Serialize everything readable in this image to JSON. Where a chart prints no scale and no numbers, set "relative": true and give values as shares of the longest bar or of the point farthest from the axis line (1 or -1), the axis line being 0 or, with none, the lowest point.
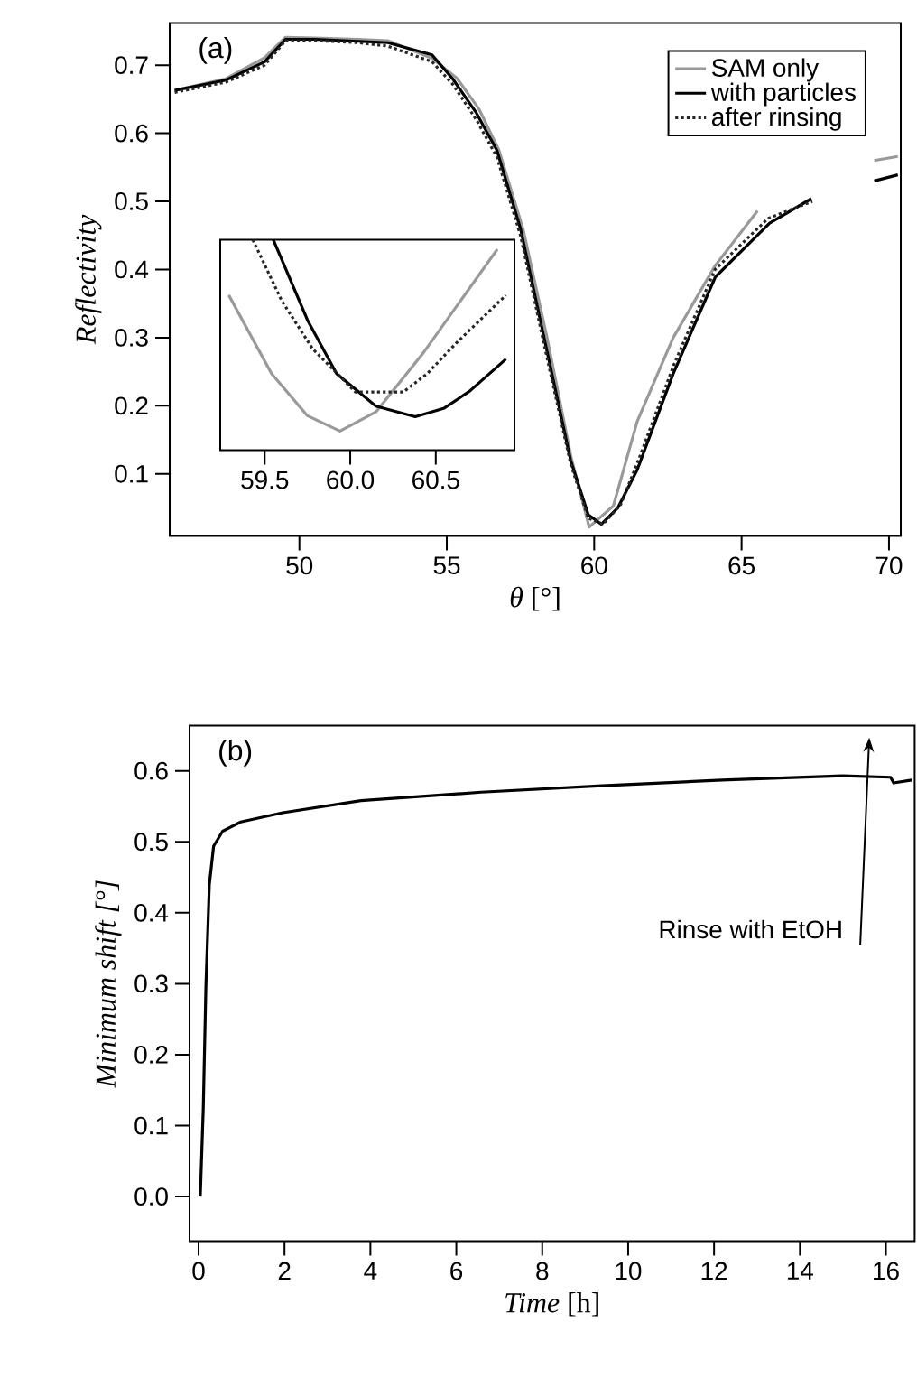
{
  "chart_data": [
    {
      "type": "line",
      "xlabel": "*θ* [°]",
      "ylabel": "Reflectivity",
      "annotations": [
        "(a)"
      ],
      "xlim": [
        45.6,
        70.4
      ],
      "ylim": [
        0.009,
        0.762
      ],
      "xticks": [
        50,
        55,
        60,
        65,
        70
      ],
      "yticks": [
        0.1,
        0.2,
        0.3,
        0.4,
        0.5,
        0.6,
        0.7
      ],
      "legend": "top right",
      "grid": false,
      "series": [
        {
          "name": "SAM only",
          "color": "#999999",
          "line_style": "solid",
          "x": [
            45.77,
            47.5,
            48.82,
            49.53,
            50.5,
            52,
            53,
            54.5,
            55.34,
            56.1,
            56.77,
            57.59,
            58.4,
            59.22,
            59.83,
            60.65,
            61.46,
            62.68,
            64.11,
            65.54,
            67,
            69.5,
            70.3
          ],
          "values": [
            0.663,
            0.68,
            0.711,
            0.741,
            0.74,
            0.738,
            0.736,
            0.71,
            0.681,
            0.635,
            0.575,
            0.459,
            0.3,
            0.124,
            0.022,
            0.053,
            0.177,
            0.3,
            0.406,
            0.486,
            null,
            0.56,
            0.566
          ]
        },
        {
          "name": "with particles",
          "color": "#000000",
          "line_style": "solid",
          "x": [
            45.77,
            47.5,
            48.82,
            49.53,
            50.5,
            52,
            53,
            54.5,
            55.2,
            56,
            56.7,
            57.5,
            58.3,
            59.2,
            59.8,
            60.24,
            60.8,
            61.46,
            62.68,
            64.11,
            65.95,
            67.37,
            68.5,
            69.5,
            70.3
          ],
          "values": [
            0.663,
            0.678,
            0.705,
            0.738,
            0.738,
            0.735,
            0.733,
            0.715,
            0.68,
            0.63,
            0.575,
            0.46,
            0.3,
            0.12,
            0.04,
            0.026,
            0.05,
            0.106,
            0.247,
            0.389,
            0.468,
            0.504,
            null,
            0.53,
            0.539
          ]
        },
        {
          "name": "after rinsing",
          "color": "#262626",
          "line_style": "dotted",
          "x": [
            45.77,
            47.5,
            48.82,
            49.53,
            50.5,
            52,
            53,
            54.5,
            55.2,
            56,
            56.7,
            57.5,
            58.3,
            59.2,
            59.8,
            60.3,
            60.9,
            61.5,
            62.7,
            64.1,
            65.9,
            67.4
          ],
          "values": [
            0.66,
            0.675,
            0.7,
            0.736,
            0.736,
            0.733,
            0.728,
            0.705,
            0.672,
            0.62,
            0.565,
            0.45,
            0.29,
            0.115,
            0.035,
            0.026,
            0.055,
            0.12,
            0.26,
            0.4,
            0.475,
            0.5
          ]
        }
      ]
    },
    {
      "type": "line",
      "relative": true,
      "xlim": [
        59.24,
        60.96
      ],
      "xticks": [
        59.5,
        {
          "value": 60,
          "label": "60.0"
        },
        60.5
      ],
      "tick_labels": "x",
      "series": [
        {
          "color": "#999999",
          "line_style": "solid",
          "x": [
            59.29,
            59.54,
            59.75,
            59.94,
            60.15,
            60.42,
            60.86
          ],
          "values": [
            0.71,
            0.3,
            0.08,
            0,
            0.1,
            0.4,
            0.95
          ]
        },
        {
          "color": "#000000",
          "line_style": "solid",
          "x": [
            59.55,
            59.75,
            59.92,
            60.15,
            60.38,
            60.55,
            60.7,
            60.91
          ],
          "values": [
            1,
            0.58,
            0.3,
            0.13,
            0.075,
            0.12,
            0.21,
            0.376
          ]
        },
        {
          "color": "#262626",
          "line_style": "dotted",
          "x": [
            59.43,
            59.6,
            59.78,
            60.03,
            60.31,
            60.45,
            60.62,
            60.91
          ],
          "values": [
            1,
            0.68,
            0.43,
            0.204,
            0.204,
            0.3,
            0.46,
            0.71
          ]
        }
      ]
    },
    {
      "type": "line",
      "xlabel": "*Time* [h]",
      "ylabel": "*Minimum shift* [°]",
      "annotations": [
        "(b)",
        "Rinse with EtOH"
      ],
      "xlim": [
        -0.21,
        16.67
      ],
      "ylim": [
        -0.063,
        0.664
      ],
      "xticks": [
        0,
        2,
        4,
        6,
        8,
        10,
        12,
        14,
        16
      ],
      "yticks": [
        {
          "value": 0,
          "label": "0.0"
        },
        0.1,
        0.2,
        0.3,
        0.4,
        0.5,
        0.6
      ],
      "series": [
        {
          "color": "#000000",
          "line_style": "solid",
          "x": [
            0.04,
            0.11,
            0.17,
            0.25,
            0.35,
            0.56,
            0.98,
            1.96,
            3.78,
            6.58,
            9.39,
            12.19,
            14.99,
            16.11,
            16.18,
            16.6
          ],
          "values": [
            0,
            0.125,
            0.295,
            0.439,
            0.494,
            0.515,
            0.528,
            0.541,
            0.558,
            0.57,
            0.579,
            0.587,
            0.593,
            0.591,
            0.583,
            0.587
          ]
        }
      ]
    }
  ]
}
